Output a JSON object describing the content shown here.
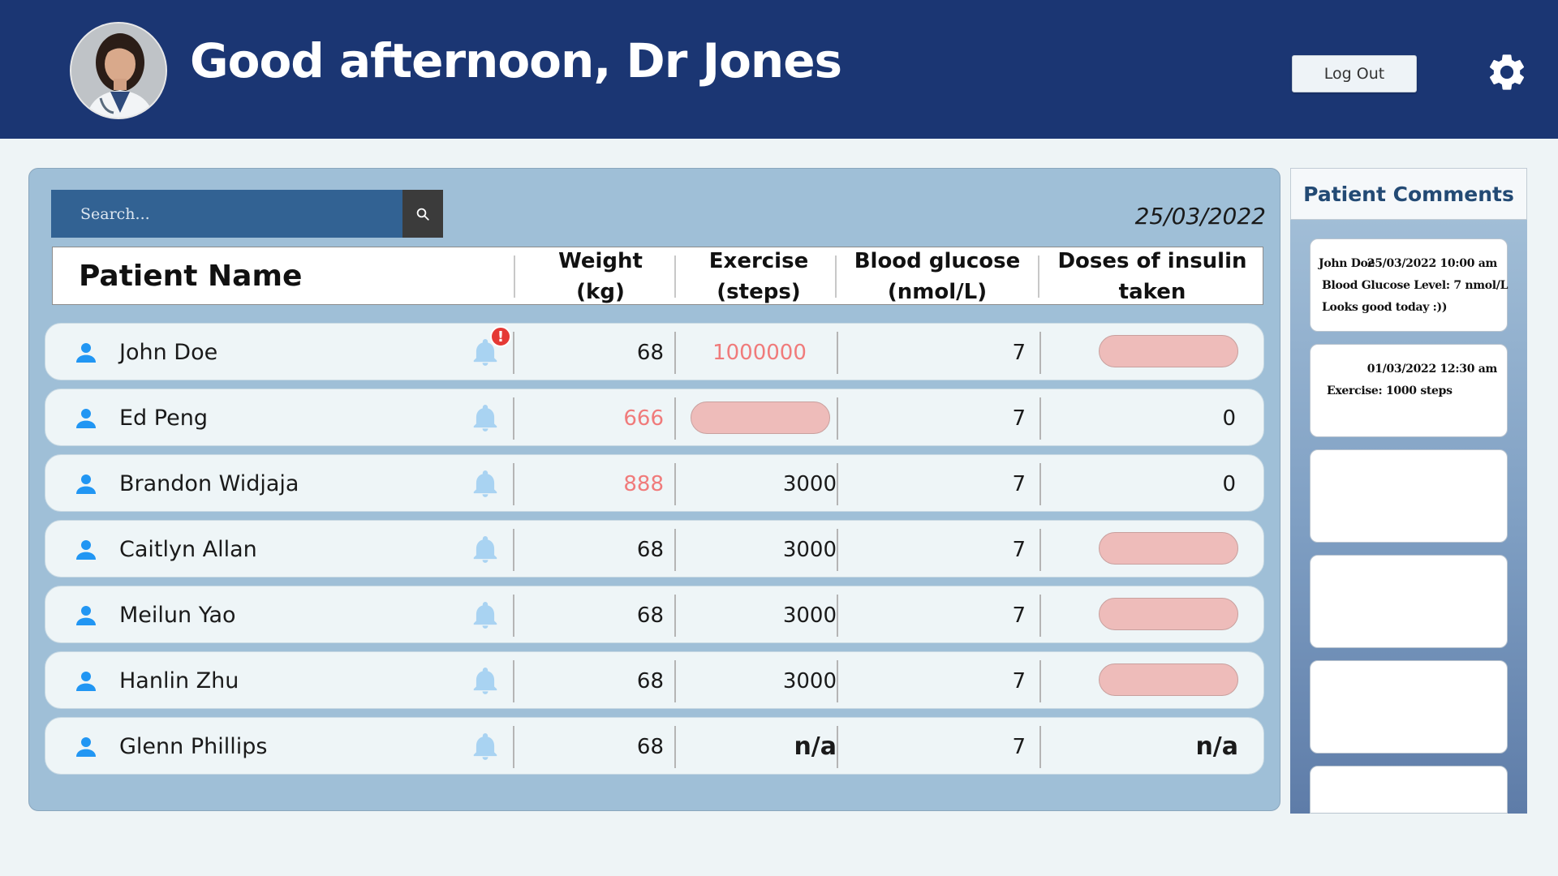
{
  "header": {
    "greeting": "Good afternoon, Dr Jones",
    "logout_label": "Log Out",
    "settings_icon": "gear-icon",
    "background_color": "#1b3673"
  },
  "search": {
    "placeholder": "Search...",
    "icon": "search-icon"
  },
  "date": "25/03/2022",
  "table": {
    "columns": [
      "Patient Name",
      "Weight (kg)",
      "Exercise\n(steps)",
      "Blood glucose\n(nmol/L)",
      "Doses of insulin\ntaken"
    ],
    "rows": [
      {
        "name": "John Doe",
        "alert": true,
        "alert_symbol": "!",
        "weight": "68",
        "weight_warn": false,
        "steps": "1000000",
        "steps_warn": true,
        "steps_pill": false,
        "glucose": "7",
        "insulin": "",
        "insulin_pill": true
      },
      {
        "name": "Ed Peng",
        "alert": false,
        "weight": "666",
        "weight_warn": true,
        "steps": "",
        "steps_warn": false,
        "steps_pill": true,
        "glucose": "7",
        "insulin": "0",
        "insulin_pill": false
      },
      {
        "name": "Brandon Widjaja",
        "alert": false,
        "weight": "888",
        "weight_warn": true,
        "steps": "3000",
        "steps_warn": false,
        "steps_pill": false,
        "glucose": "7",
        "insulin": "0",
        "insulin_pill": false
      },
      {
        "name": "Caitlyn Allan",
        "alert": false,
        "weight": "68",
        "weight_warn": false,
        "steps": "3000",
        "steps_warn": false,
        "steps_pill": false,
        "glucose": "7",
        "insulin": "",
        "insulin_pill": true
      },
      {
        "name": "Meilun Yao",
        "alert": false,
        "weight": "68",
        "weight_warn": false,
        "steps": "3000",
        "steps_warn": false,
        "steps_pill": false,
        "glucose": "7",
        "insulin": "",
        "insulin_pill": true
      },
      {
        "name": "Hanlin Zhu",
        "alert": false,
        "weight": "68",
        "weight_warn": false,
        "steps": "3000",
        "steps_warn": false,
        "steps_pill": false,
        "glucose": "7",
        "insulin": "",
        "insulin_pill": true
      },
      {
        "name": "Glenn Phillips",
        "alert": false,
        "weight": "68",
        "weight_warn": false,
        "steps": "n/a",
        "steps_warn": false,
        "steps_pill": false,
        "glucose": "7",
        "insulin": "n/a",
        "insulin_pill": false
      }
    ],
    "warn_color": "#f07b7b",
    "pill_color": "#eebcba"
  },
  "comments": {
    "title": "Patient Comments",
    "cards": [
      {
        "name": "John Doe",
        "datetime": "25/03/2022 10:00 am",
        "lines": [
          "Blood Glucose Level: 7 nmol/L",
          "Looks good today :))"
        ]
      },
      {
        "name": "",
        "datetime": "01/03/2022 12:30 am",
        "lines": [
          "Exercise: 1000 steps"
        ]
      },
      {
        "name": "",
        "datetime": "",
        "lines": []
      },
      {
        "name": "",
        "datetime": "",
        "lines": []
      },
      {
        "name": "",
        "datetime": "",
        "lines": []
      },
      {
        "name": "",
        "datetime": "",
        "lines": []
      }
    ]
  }
}
